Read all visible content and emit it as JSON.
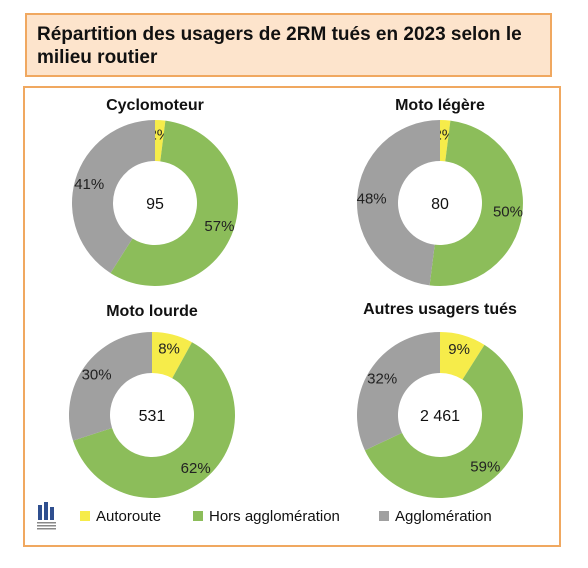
{
  "title": "Répartition des usagers de 2RM tués en 2023 selon le milieu routier",
  "colors": {
    "Autoroute": "#f6ec4a",
    "Hors agglomération": "#8cbd5a",
    "Agglomération": "#a0a0a0"
  },
  "chart_data": [
    {
      "type": "pie",
      "title": "Cyclomoteur",
      "total_label": "95",
      "slices": [
        {
          "category": "Autoroute",
          "value": 2,
          "label": "2%"
        },
        {
          "category": "Hors agglomération",
          "value": 57,
          "label": "57%"
        },
        {
          "category": "Agglomération",
          "value": 41,
          "label": "41%"
        }
      ]
    },
    {
      "type": "pie",
      "title": "Moto légère",
      "total_label": "80",
      "slices": [
        {
          "category": "Autoroute",
          "value": 2,
          "label": "2%"
        },
        {
          "category": "Hors agglomération",
          "value": 50,
          "label": "50%"
        },
        {
          "category": "Agglomération",
          "value": 48,
          "label": "48%"
        }
      ]
    },
    {
      "type": "pie",
      "title": "Moto lourde",
      "total_label": "531",
      "slices": [
        {
          "category": "Autoroute",
          "value": 8,
          "label": "8%"
        },
        {
          "category": "Hors agglomération",
          "value": 62,
          "label": "62%"
        },
        {
          "category": "Agglomération",
          "value": 30,
          "label": "30%"
        }
      ]
    },
    {
      "type": "pie",
      "title": "Autres usagers tués",
      "total_label": "2 461",
      "slices": [
        {
          "category": "Autoroute",
          "value": 9,
          "label": "9%"
        },
        {
          "category": "Hors agglomération",
          "value": 59,
          "label": "59%"
        },
        {
          "category": "Agglomération",
          "value": 32,
          "label": "32%"
        }
      ]
    }
  ],
  "legend": [
    {
      "category": "Autoroute",
      "label": "Autoroute"
    },
    {
      "category": "Hors agglomération",
      "label": "Hors agglomération"
    },
    {
      "category": "Agglomération",
      "label": "Agglomération"
    }
  ],
  "logo": {
    "icon": "sécurité-routière-logo"
  }
}
